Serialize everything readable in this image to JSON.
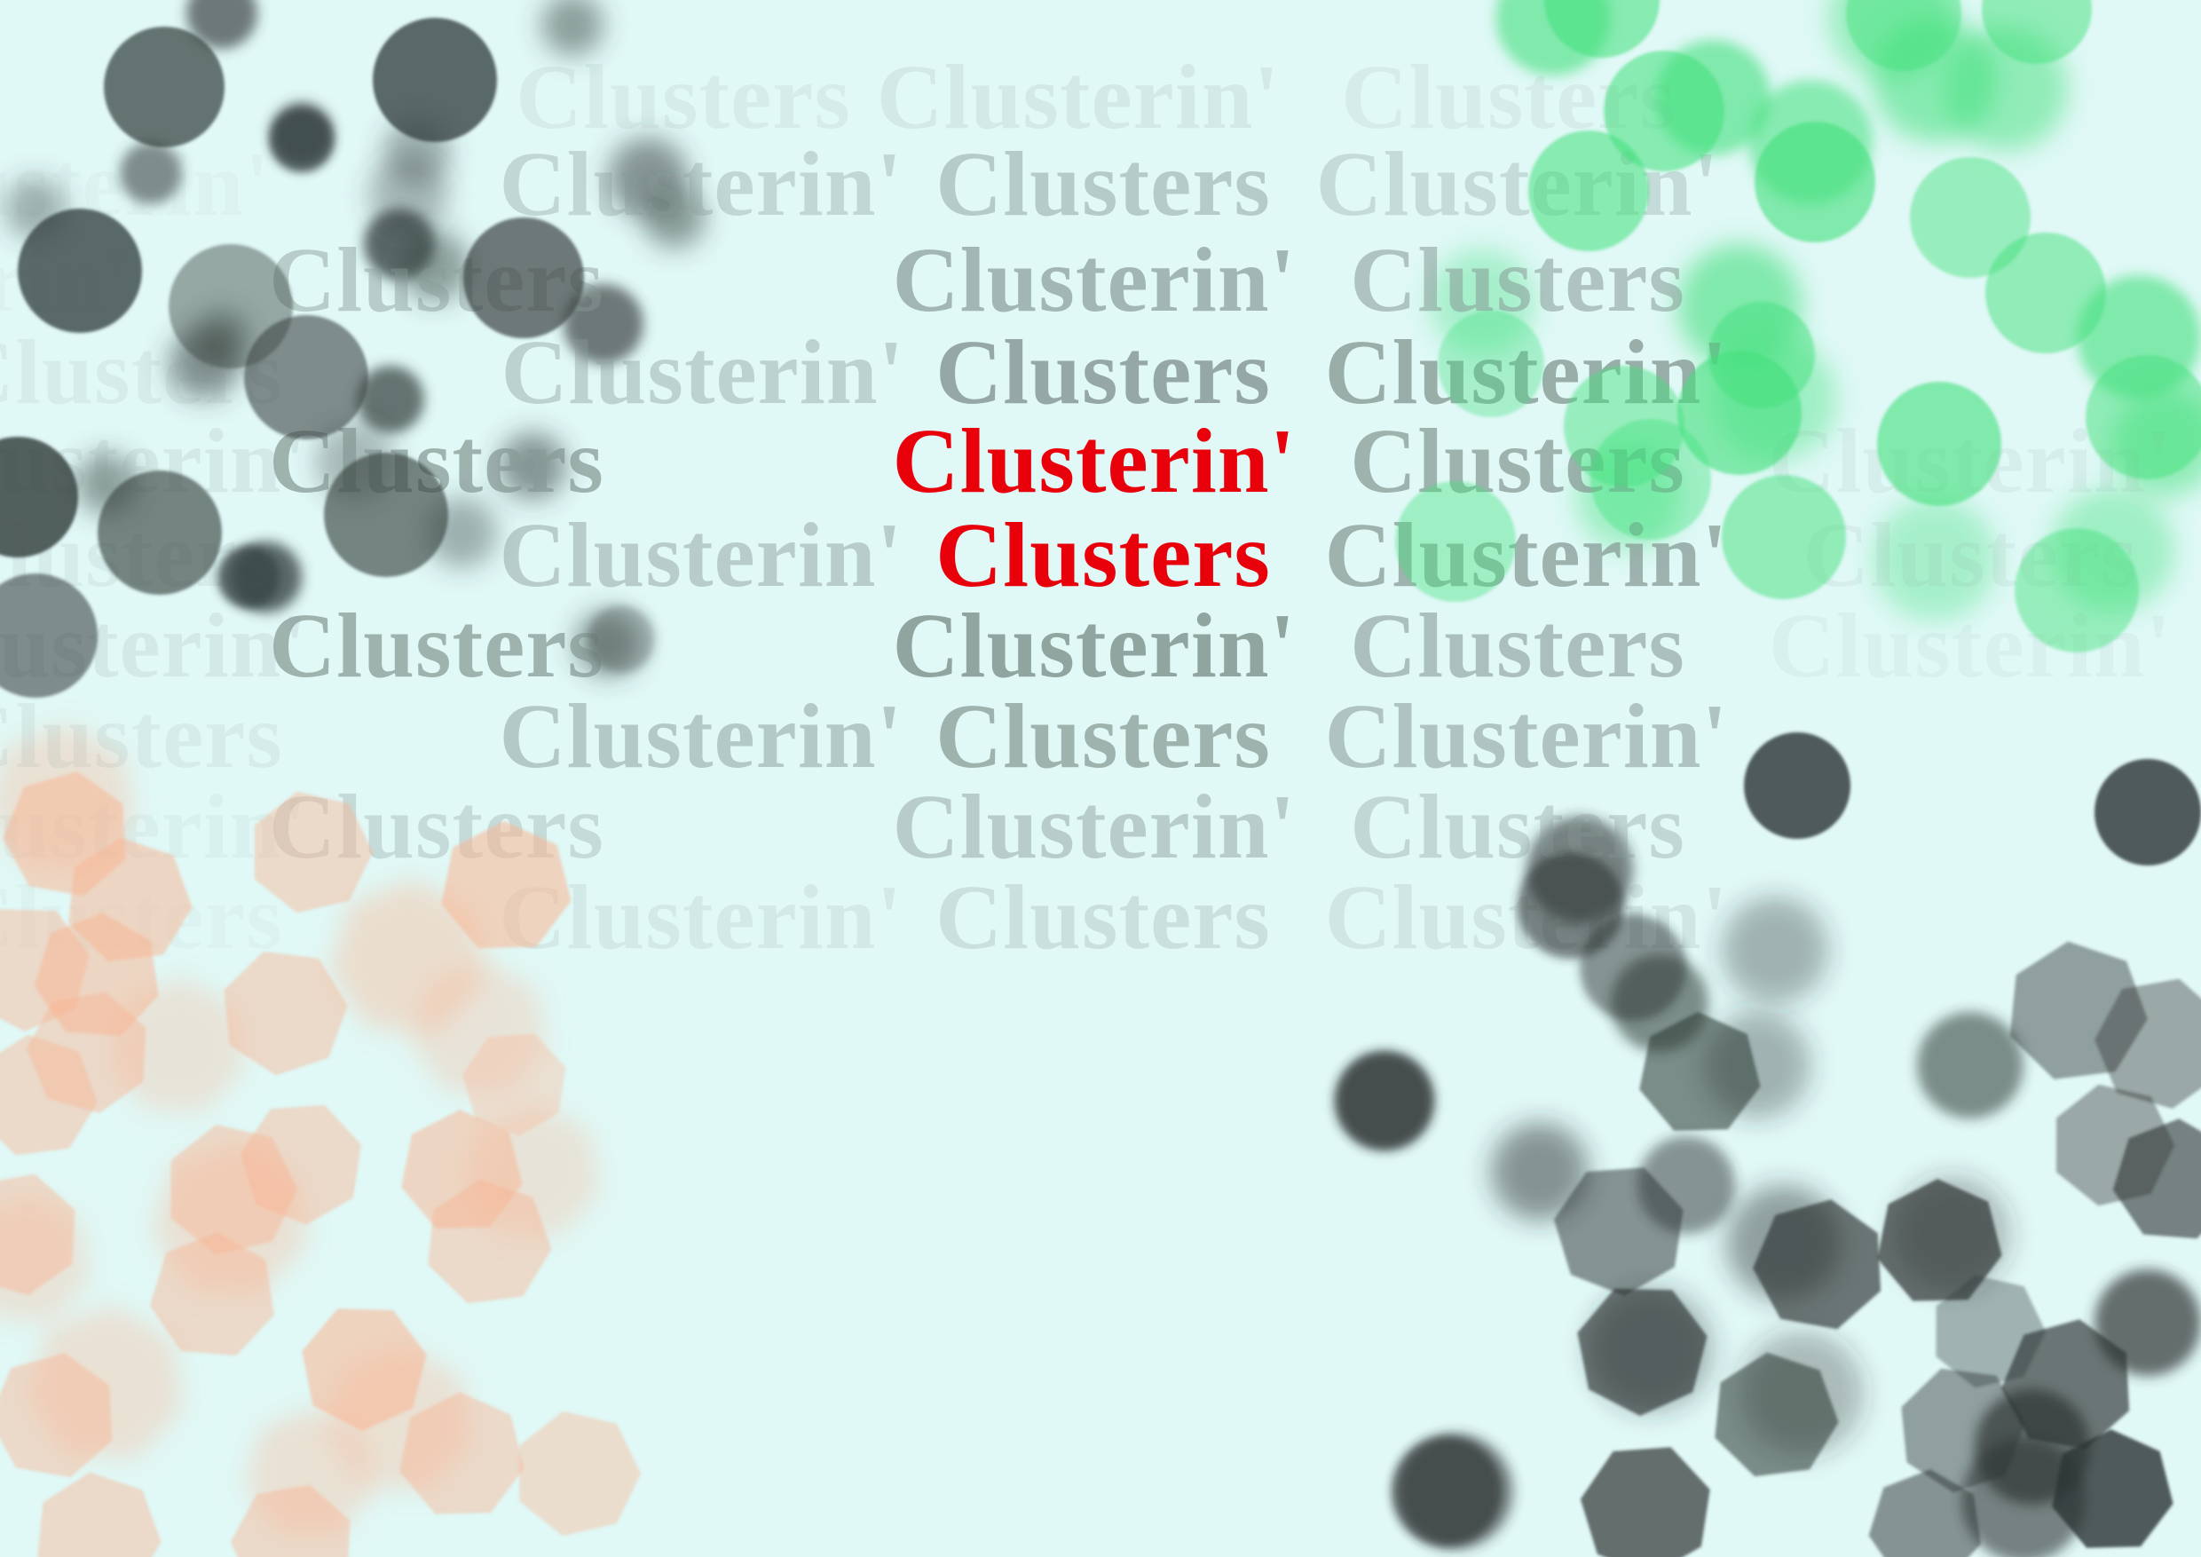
{
  "words": [
    "Clusterin'",
    "Clusters"
  ],
  "highlight_color": "#e8000b",
  "text_color": "#889b97",
  "background_color": "#e0f8f6",
  "cluster_colors": {
    "top_left": "#3a4543",
    "top_right": "#3fe07a",
    "bottom_left": "#f9b492",
    "bottom_right": "#2c3332"
  }
}
